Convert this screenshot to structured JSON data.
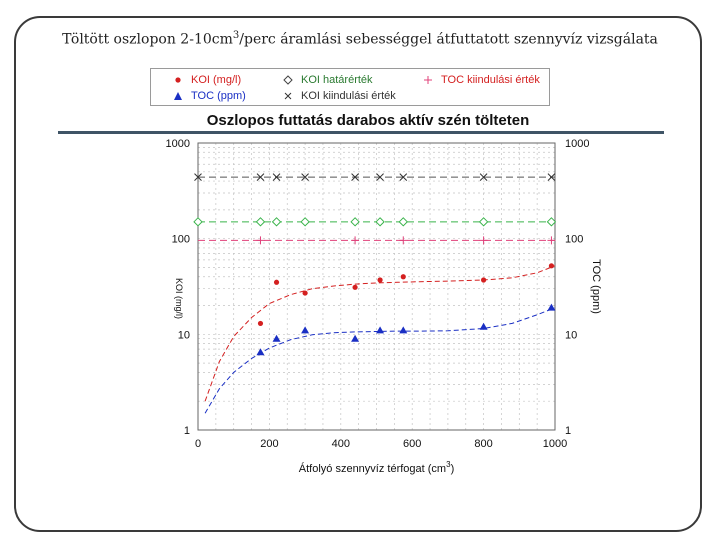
{
  "slide": {
    "title": "Töltött oszlopon 2-10cm",
    "title_sup": "3",
    "title_rest": "/perc áramlási sebességgel átfuttatott szennyvíz vizsgálata"
  },
  "legend": {
    "koi": "KOI (mg/l)",
    "toc": "TOC (ppm)",
    "koi_limit": "KOI határérték",
    "koi_initial": "KOI kiindulási érték",
    "toc_initial": "TOC kiindulási érték"
  },
  "colors": {
    "koi": "#d42020",
    "toc": "#1a2fc4",
    "koi_limit": "#39b34a",
    "koi_initial": "#333333",
    "toc_initial": "#e0407a",
    "frame": "#3a3a3a",
    "rule": "#3f5466"
  },
  "chart_data": {
    "type": "scatter",
    "title": "Oszlopos futtatás darabos aktív szén tölteten",
    "xlabel": "Átfolyó szennyvíz térfogat (cm",
    "xlabel_sup": "3",
    "xlabel_end": ")",
    "ylabel_right": "TOC (ppm)",
    "ylabel_left": "KOI (mg/l)",
    "xlim": [
      0,
      1000
    ],
    "ylim": [
      1,
      1000
    ],
    "yscale": "log",
    "x_ticks": [
      0,
      200,
      400,
      600,
      800,
      1000
    ],
    "y_ticks": [
      1,
      10,
      100,
      1000
    ],
    "y_tick_labels_left": [
      "1",
      "10",
      "100",
      "1000"
    ],
    "y_tick_labels_right": [
      "1",
      "10",
      "100",
      "1000"
    ],
    "grid": true,
    "series": [
      {
        "name": "KOI (mg/l)",
        "marker": "dot",
        "color_key": "koi",
        "x": [
          175,
          220,
          300,
          440,
          510,
          575,
          800,
          990
        ],
        "y": [
          13,
          35,
          27,
          31,
          37,
          40,
          37,
          52
        ]
      },
      {
        "name": "TOC (ppm)",
        "marker": "triangle",
        "color_key": "toc",
        "x": [
          175,
          220,
          300,
          440,
          510,
          575,
          800,
          990
        ],
        "y": [
          6.5,
          9,
          11,
          9,
          11,
          11,
          12,
          19
        ]
      },
      {
        "name": "KOI határérték",
        "marker": "diamond",
        "color_key": "koi_limit",
        "x": [
          0,
          175,
          220,
          300,
          440,
          510,
          575,
          800,
          990
        ],
        "y": [
          150,
          150,
          150,
          150,
          150,
          150,
          150,
          150,
          150
        ]
      },
      {
        "name": "KOI kiindulási érték",
        "marker": "x",
        "color_key": "koi_initial",
        "x": [
          0,
          175,
          220,
          300,
          440,
          510,
          575,
          800,
          990
        ],
        "y": [
          440,
          440,
          440,
          440,
          440,
          440,
          440,
          440,
          440
        ]
      },
      {
        "name": "TOC kiindulási érték",
        "marker": "plus",
        "color_key": "toc_initial",
        "x": [
          175,
          440,
          575,
          800,
          990
        ],
        "y": [
          96,
          96,
          96,
          96,
          96
        ]
      }
    ],
    "fit_curves": [
      {
        "series": "KOI (mg/l)",
        "color_key": "koi",
        "x": [
          20,
          60,
          100,
          150,
          200,
          260,
          320,
          380,
          440,
          500,
          560,
          620,
          700,
          800,
          880,
          950,
          1000
        ],
        "y": [
          2.0,
          5.2,
          9.5,
          15,
          21,
          26,
          30,
          32,
          33.5,
          34.5,
          35,
          35.5,
          36,
          37,
          39,
          44,
          52
        ]
      },
      {
        "series": "TOC (ppm)",
        "color_key": "toc",
        "x": [
          20,
          60,
          100,
          150,
          200,
          260,
          320,
          380,
          440,
          500,
          560,
          620,
          700,
          800,
          880,
          950,
          1000
        ],
        "y": [
          1.5,
          2.7,
          4.0,
          5.6,
          7.2,
          8.8,
          9.9,
          10.4,
          10.6,
          10.7,
          10.8,
          10.8,
          10.9,
          11.5,
          13,
          16,
          19
        ]
      }
    ]
  }
}
